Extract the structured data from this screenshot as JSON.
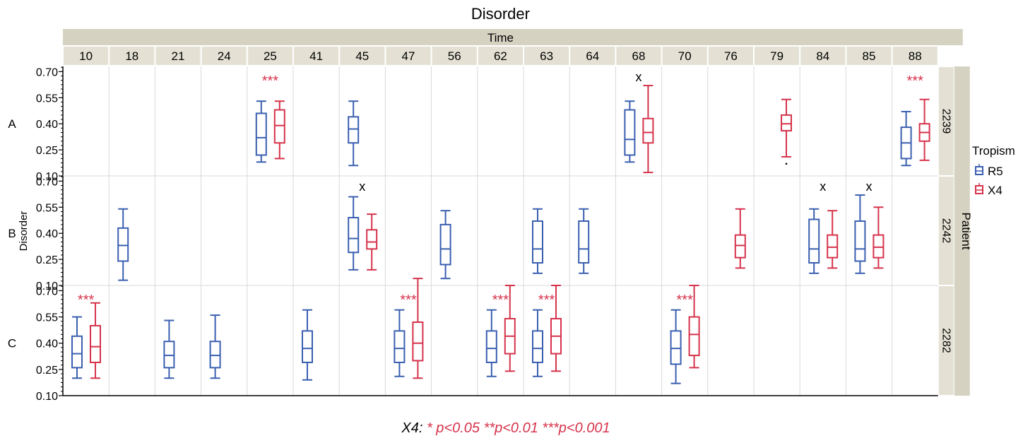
{
  "chart_data": {
    "type": "box",
    "title": "Disorder",
    "column_header": "Time",
    "row_header": "Patient",
    "ylabel": "Disorder",
    "ylim": [
      0.1,
      0.73
    ],
    "yticks": [
      "0.10",
      "0.25",
      "0.40",
      "0.55",
      "0.70"
    ],
    "times": [
      "10",
      "18",
      "21",
      "24",
      "25",
      "41",
      "45",
      "47",
      "56",
      "62",
      "63",
      "64",
      "68",
      "70",
      "76",
      "79",
      "84",
      "85",
      "88"
    ],
    "patients": [
      {
        "id": "2239",
        "letter": "A"
      },
      {
        "id": "2242",
        "letter": "B"
      },
      {
        "id": "2282",
        "letter": "C"
      }
    ],
    "legend": {
      "title": "Tropism",
      "entries": [
        {
          "name": "R5",
          "color": "#3a5fb0"
        },
        {
          "name": "X4",
          "color": "#d6334b"
        }
      ]
    },
    "colors": {
      "R5": "#3a5fb0",
      "X4": "#d6334b",
      "header_bg": "#e4e1d4",
      "header_dark": "#d5d2c2",
      "grid": "#d9d9d9"
    },
    "boxes": [
      {
        "patient": "2239",
        "time": "25",
        "tropism": "R5",
        "stats": [
          0.18,
          0.22,
          0.32,
          0.46,
          0.53
        ]
      },
      {
        "patient": "2239",
        "time": "25",
        "tropism": "X4",
        "stats": [
          0.2,
          0.29,
          0.39,
          0.48,
          0.53
        ]
      },
      {
        "patient": "2239",
        "time": "45",
        "tropism": "R5",
        "stats": [
          0.16,
          0.29,
          0.37,
          0.44,
          0.53
        ]
      },
      {
        "patient": "2239",
        "time": "68",
        "tropism": "R5",
        "stats": [
          0.18,
          0.22,
          0.31,
          0.48,
          0.53
        ]
      },
      {
        "patient": "2239",
        "time": "68",
        "tropism": "X4",
        "stats": [
          0.12,
          0.29,
          0.35,
          0.43,
          0.62
        ]
      },
      {
        "patient": "2239",
        "time": "79",
        "tropism": "X4",
        "stats": [
          0.21,
          0.36,
          0.4,
          0.45,
          0.54
        ]
      },
      {
        "patient": "2239",
        "time": "88",
        "tropism": "R5",
        "stats": [
          0.16,
          0.2,
          0.29,
          0.38,
          0.47
        ]
      },
      {
        "patient": "2239",
        "time": "88",
        "tropism": "X4",
        "stats": [
          0.19,
          0.3,
          0.35,
          0.4,
          0.54
        ]
      },
      {
        "patient": "2242",
        "time": "18",
        "tropism": "R5",
        "stats": [
          0.13,
          0.24,
          0.33,
          0.43,
          0.54
        ]
      },
      {
        "patient": "2242",
        "time": "45",
        "tropism": "R5",
        "stats": [
          0.19,
          0.29,
          0.37,
          0.49,
          0.61
        ]
      },
      {
        "patient": "2242",
        "time": "45",
        "tropism": "X4",
        "stats": [
          0.19,
          0.31,
          0.35,
          0.42,
          0.51
        ]
      },
      {
        "patient": "2242",
        "time": "56",
        "tropism": "R5",
        "stats": [
          0.14,
          0.22,
          0.31,
          0.45,
          0.53
        ]
      },
      {
        "patient": "2242",
        "time": "63",
        "tropism": "R5",
        "stats": [
          0.17,
          0.23,
          0.31,
          0.47,
          0.54
        ]
      },
      {
        "patient": "2242",
        "time": "64",
        "tropism": "R5",
        "stats": [
          0.17,
          0.23,
          0.31,
          0.47,
          0.54
        ]
      },
      {
        "patient": "2242",
        "time": "76",
        "tropism": "X4",
        "stats": [
          0.2,
          0.26,
          0.33,
          0.39,
          0.54
        ]
      },
      {
        "patient": "2242",
        "time": "84",
        "tropism": "R5",
        "stats": [
          0.17,
          0.23,
          0.31,
          0.48,
          0.54
        ]
      },
      {
        "patient": "2242",
        "time": "84",
        "tropism": "X4",
        "stats": [
          0.2,
          0.26,
          0.32,
          0.39,
          0.53
        ]
      },
      {
        "patient": "2242",
        "time": "85",
        "tropism": "R5",
        "stats": [
          0.17,
          0.24,
          0.31,
          0.47,
          0.62
        ]
      },
      {
        "patient": "2242",
        "time": "85",
        "tropism": "X4",
        "stats": [
          0.2,
          0.26,
          0.32,
          0.39,
          0.55
        ]
      },
      {
        "patient": "2282",
        "time": "10",
        "tropism": "R5",
        "stats": [
          0.2,
          0.26,
          0.34,
          0.44,
          0.55
        ]
      },
      {
        "patient": "2282",
        "time": "10",
        "tropism": "X4",
        "stats": [
          0.2,
          0.29,
          0.38,
          0.5,
          0.63
        ]
      },
      {
        "patient": "2282",
        "time": "21",
        "tropism": "R5",
        "stats": [
          0.2,
          0.26,
          0.33,
          0.41,
          0.53
        ]
      },
      {
        "patient": "2282",
        "time": "24",
        "tropism": "R5",
        "stats": [
          0.2,
          0.26,
          0.33,
          0.41,
          0.56
        ]
      },
      {
        "patient": "2282",
        "time": "41",
        "tropism": "R5",
        "stats": [
          0.19,
          0.29,
          0.37,
          0.47,
          0.59
        ]
      },
      {
        "patient": "2282",
        "time": "47",
        "tropism": "R5",
        "stats": [
          0.21,
          0.29,
          0.37,
          0.47,
          0.59
        ]
      },
      {
        "patient": "2282",
        "time": "47",
        "tropism": "X4",
        "stats": [
          0.2,
          0.3,
          0.4,
          0.52,
          0.77
        ]
      },
      {
        "patient": "2282",
        "time": "62",
        "tropism": "R5",
        "stats": [
          0.21,
          0.29,
          0.37,
          0.47,
          0.59
        ]
      },
      {
        "patient": "2282",
        "time": "62",
        "tropism": "X4",
        "stats": [
          0.24,
          0.34,
          0.44,
          0.54,
          0.73
        ]
      },
      {
        "patient": "2282",
        "time": "63",
        "tropism": "R5",
        "stats": [
          0.21,
          0.29,
          0.37,
          0.47,
          0.59
        ]
      },
      {
        "patient": "2282",
        "time": "63",
        "tropism": "X4",
        "stats": [
          0.24,
          0.34,
          0.44,
          0.54,
          0.73
        ]
      },
      {
        "patient": "2282",
        "time": "70",
        "tropism": "R5",
        "stats": [
          0.17,
          0.28,
          0.37,
          0.47,
          0.59
        ]
      },
      {
        "patient": "2282",
        "time": "70",
        "tropism": "X4",
        "stats": [
          0.26,
          0.33,
          0.45,
          0.55,
          0.73
        ]
      }
    ],
    "annotations": [
      {
        "patient": "2239",
        "time": "25",
        "text": "***",
        "color": "#d6334b"
      },
      {
        "patient": "2239",
        "time": "68",
        "text": "x",
        "color": "#000000"
      },
      {
        "patient": "2239",
        "time": "88",
        "text": "***",
        "color": "#d6334b"
      },
      {
        "patient": "2242",
        "time": "45",
        "text": "x",
        "color": "#000000"
      },
      {
        "patient": "2242",
        "time": "84",
        "text": "x",
        "color": "#000000"
      },
      {
        "patient": "2242",
        "time": "85",
        "text": "x",
        "color": "#000000"
      },
      {
        "patient": "2282",
        "time": "10",
        "text": "***",
        "color": "#d6334b"
      },
      {
        "patient": "2282",
        "time": "47",
        "text": "***",
        "color": "#d6334b"
      },
      {
        "patient": "2282",
        "time": "62",
        "text": "***",
        "color": "#d6334b"
      },
      {
        "patient": "2282",
        "time": "63",
        "text": "***",
        "color": "#d6334b"
      },
      {
        "patient": "2282",
        "time": "70",
        "text": "***",
        "color": "#d6334b"
      }
    ],
    "outlier": {
      "patient": "2239",
      "time": "79",
      "tropism": "X4",
      "value": 0.17
    },
    "footnote": {
      "prefix": "X4:",
      "text": "* p<0.05  **p<0.01  ***p<0.001"
    }
  }
}
